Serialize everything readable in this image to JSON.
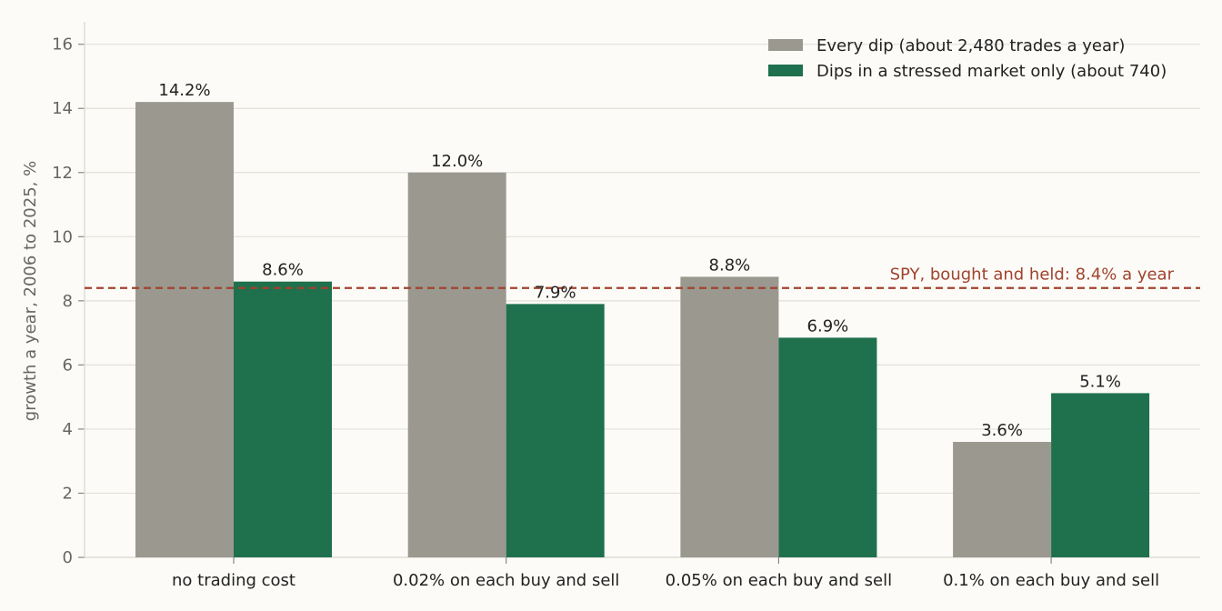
{
  "chart_data": {
    "type": "bar",
    "categories": [
      "no trading cost",
      "0.02% on each buy and sell",
      "0.05% on each buy and sell",
      "0.1% on each buy and sell"
    ],
    "series": [
      {
        "name": "Every dip (about 2,480 trades a year)",
        "values": [
          14.2,
          12.0,
          8.75,
          3.6
        ],
        "labels": [
          "14.2%",
          "12.0%",
          "8.8%",
          "3.6%"
        ],
        "color": "#9b9890"
      },
      {
        "name": "Dips in a stressed market only (about 740)",
        "values": [
          8.6,
          7.9,
          6.85,
          5.12
        ],
        "labels": [
          "8.6%",
          "7.9%",
          "6.9%",
          "5.1%"
        ],
        "color": "#1f704d"
      }
    ],
    "ylabel": "growth a year, 2006 to 2025, %",
    "ylim": [
      0,
      16.7
    ],
    "yticks": [
      0,
      2,
      4,
      6,
      8,
      10,
      12,
      14,
      16
    ],
    "grid": true,
    "legend_position": "top-right",
    "reference_line": {
      "value": 8.4,
      "label": "SPY, bought and held: 8.4% a year",
      "color": "#a0432d",
      "style": "dashed"
    }
  }
}
